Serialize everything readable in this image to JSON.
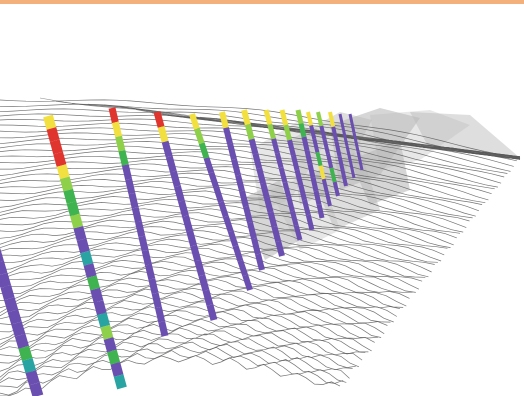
{
  "scene": {
    "subject": "drillhole-traces-on-terrain",
    "background_color": "#ffffff",
    "top_band_color": "#f3b07a",
    "contour_color": "#5a5a5a",
    "shaded_face_color": "#b9b9b9",
    "trace_base_color": "#6a4fb0",
    "segment_colors": [
      "#e0342e",
      "#f2e040",
      "#8fd04a",
      "#3fb34f",
      "#2aa3a3",
      "#6a4fb0"
    ]
  }
}
